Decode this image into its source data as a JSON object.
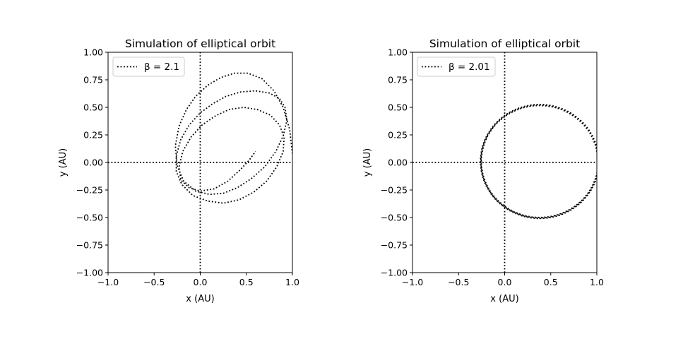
{
  "chart_data": [
    {
      "type": "line",
      "title": "Simulation of elliptical orbit",
      "xlabel": "x (AU)",
      "ylabel": "y (AU)",
      "xlim": [
        -1.0,
        1.0
      ],
      "ylim": [
        -1.0,
        1.0
      ],
      "xticks": [
        "−1.0",
        "−0.5",
        "0.0",
        "0.5",
        "1.0"
      ],
      "yticks": [
        "−1.00",
        "−0.75",
        "−0.50",
        "−0.25",
        "0.00",
        "0.25",
        "0.50",
        "0.75",
        "1.00"
      ],
      "line_style": "dotted",
      "color": "#000000",
      "legend_position": "upper left",
      "series": [
        {
          "name": "β = 2.1",
          "x": [
            1.0,
            0.97,
            0.9,
            0.8,
            0.67,
            0.52,
            0.37,
            0.22,
            0.08,
            -0.05,
            -0.15,
            -0.23,
            -0.27,
            -0.25,
            -0.18,
            -0.05,
            0.1,
            0.25,
            0.4,
            0.55,
            0.7,
            0.82,
            0.9,
            0.94,
            0.92,
            0.86,
            0.75,
            0.6,
            0.44,
            0.28,
            0.13,
            0.0,
            -0.12,
            -0.21,
            -0.26,
            -0.26,
            -0.2,
            -0.08,
            0.08,
            0.25,
            0.42,
            0.58,
            0.72,
            0.83,
            0.9,
            0.91,
            0.86,
            0.76,
            0.62,
            0.47,
            0.31,
            0.16,
            0.02,
            -0.1,
            -0.19,
            -0.23,
            -0.21,
            -0.12,
            0.0,
            0.15,
            0.3,
            0.43,
            0.53,
            0.6
          ],
          "y": [
            0.08,
            0.3,
            0.5,
            0.65,
            0.76,
            0.81,
            0.81,
            0.77,
            0.7,
            0.6,
            0.48,
            0.33,
            0.15,
            -0.03,
            -0.17,
            -0.26,
            -0.29,
            -0.28,
            -0.23,
            -0.15,
            -0.04,
            0.1,
            0.24,
            0.38,
            0.5,
            0.58,
            0.63,
            0.65,
            0.64,
            0.6,
            0.53,
            0.45,
            0.34,
            0.21,
            0.06,
            -0.08,
            -0.2,
            -0.3,
            -0.35,
            -0.37,
            -0.34,
            -0.27,
            -0.17,
            -0.04,
            0.1,
            0.23,
            0.34,
            0.43,
            0.48,
            0.5,
            0.48,
            0.42,
            0.34,
            0.23,
            0.1,
            -0.04,
            -0.16,
            -0.23,
            -0.26,
            -0.24,
            -0.17,
            -0.07,
            0.02,
            0.1
          ]
        }
      ]
    },
    {
      "type": "line",
      "title": "Simulation of elliptical orbit",
      "xlabel": "x (AU)",
      "ylabel": "y (AU)",
      "xlim": [
        -1.0,
        1.0
      ],
      "ylim": [
        -1.0,
        1.0
      ],
      "xticks": [
        "−1.0",
        "−0.5",
        "0.0",
        "0.5",
        "1.0"
      ],
      "yticks": [
        "−1.00",
        "−0.75",
        "−0.50",
        "−0.25",
        "0.00",
        "0.25",
        "0.50",
        "0.75",
        "1.00"
      ],
      "line_style": "dotted",
      "color": "#000000",
      "legend_position": "upper left",
      "series": [
        {
          "name": "β = 2.01",
          "ellipse": {
            "center_x": 0.38,
            "center_y": 0.01,
            "semi_x": 0.63,
            "semi_y": 0.505,
            "orbits": 3,
            "drift": 0.015
          }
        }
      ]
    }
  ]
}
